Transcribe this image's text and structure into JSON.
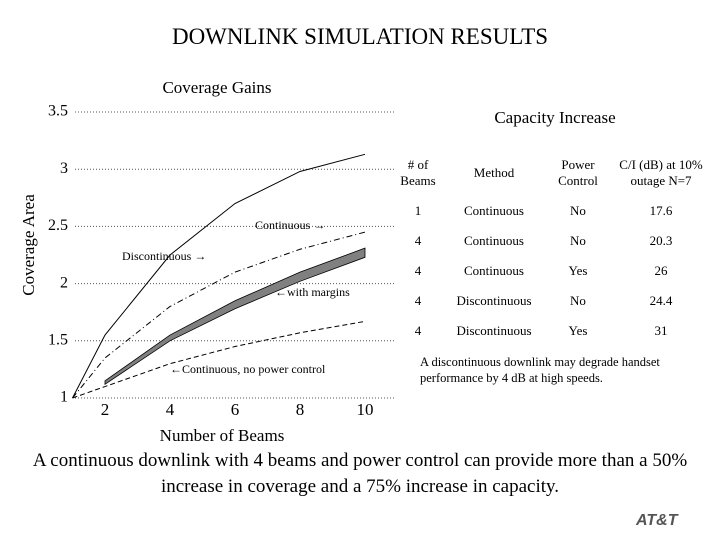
{
  "slide": {
    "title": "DOWNLINK SIMULATION RESULTS",
    "footer": "A continuous downlink with 4 beams and power control can provide more than a 50% increase in coverage and a 75% increase in capacity.",
    "logo": "AT&T"
  },
  "chart_data": {
    "type": "line",
    "title": "Coverage Gains",
    "x_label": "Number of Beams",
    "y_label": "Coverage Area",
    "xlim": [
      1,
      10
    ],
    "xticks": [
      2,
      4,
      6,
      8,
      10
    ],
    "ylim": [
      1,
      3.5
    ],
    "yticks": [
      1,
      1.5,
      2,
      2.5,
      3,
      3.5
    ],
    "grid": true,
    "series": [
      {
        "style": "solid",
        "color": "#000000",
        "x": [
          1,
          2,
          4,
          6,
          8,
          10
        ],
        "values": [
          1,
          1.55,
          2.25,
          2.7,
          2.98,
          3.13
        ]
      },
      {
        "style": "dashdot",
        "color": "#000000",
        "x": [
          1,
          2,
          4,
          6,
          8,
          10
        ],
        "values": [
          1,
          1.35,
          1.8,
          2.1,
          2.3,
          2.45
        ]
      },
      {
        "style": "band",
        "color": "#808080",
        "x": [
          2,
          4,
          6,
          8,
          10
        ],
        "values": [
          1.15,
          1.55,
          1.85,
          2.1,
          2.31
        ],
        "low": [
          1.12,
          1.5,
          1.78,
          2.02,
          2.23
        ]
      },
      {
        "style": "dashed",
        "color": "#000000",
        "x": [
          1,
          2,
          4,
          6,
          8,
          10
        ],
        "values": [
          1,
          1.1,
          1.3,
          1.45,
          1.57,
          1.67
        ]
      }
    ],
    "annotations": [
      "Continuous →",
      "Discontinuous →",
      "←with margins",
      "←Continuous, no power control"
    ]
  },
  "table": {
    "title": "Capacity Increase",
    "header": [
      "# of Beams",
      "Method",
      "Power Control",
      "C/I (dB) at 10% outage N=7"
    ],
    "rows": [
      [
        "1",
        "Continuous",
        "No",
        "17.6"
      ],
      [
        "4",
        "Continuous",
        "No",
        "20.3"
      ],
      [
        "4",
        "Continuous",
        "Yes",
        "26"
      ],
      [
        "4",
        "Discontinuous",
        "No",
        "24.4"
      ],
      [
        "4",
        "Discontinuous",
        "Yes",
        "31"
      ]
    ],
    "note": "A discontinuous downlink may degrade handset performance by 4 dB at high speeds."
  }
}
